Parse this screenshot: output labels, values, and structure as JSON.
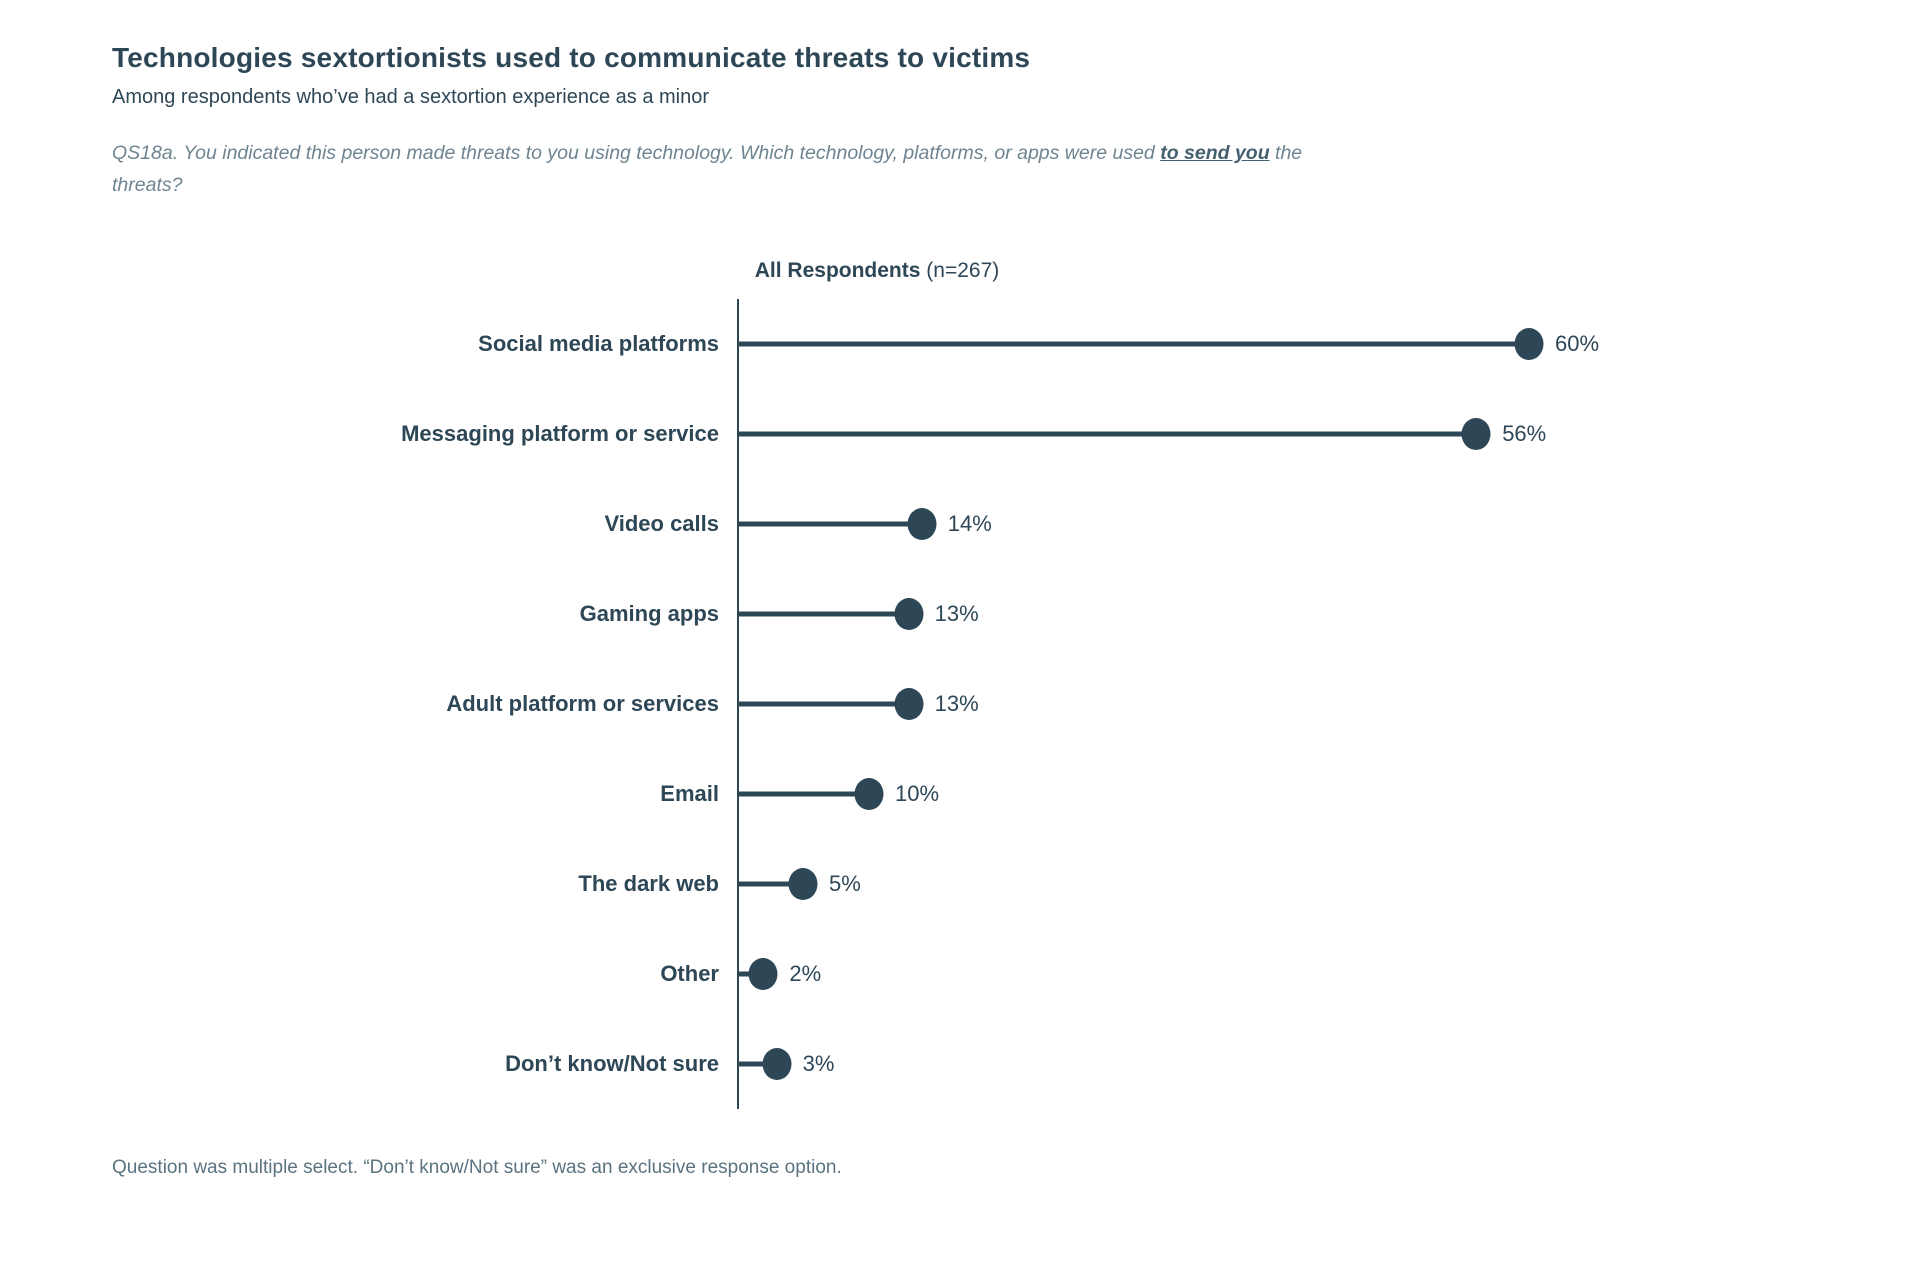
{
  "page": {
    "title": "Technologies sextortionists used to communicate threats to victims",
    "subtitle": "Among respondents who’ve had a sextortion experience as a minor",
    "question_prefix": "QS18a. You indicated this person made threats to you using technology. Which technology, platforms, or apps were used ",
    "question_emphasis": "to send you",
    "question_suffix": " the threats?",
    "footnote": "Question was multiple select. “Don’t know/Not sure” was an exclusive response option."
  },
  "chart_data": {
    "type": "bar",
    "style": "lollipop",
    "orientation": "horizontal",
    "column_header_bold": "All Respondents",
    "column_header_regular": " (n=267)",
    "categories": [
      "Social media platforms",
      "Messaging platform or service",
      "Video calls",
      "Gaming apps",
      "Adult platform or services",
      "Email",
      "The dark web",
      "Other",
      "Don’t know/Not sure"
    ],
    "values": [
      60,
      56,
      14,
      13,
      13,
      10,
      5,
      2,
      3
    ],
    "value_suffix": "%",
    "xlim": [
      0,
      65
    ],
    "grid": false,
    "legend": "none",
    "colors": {
      "accent": "#2e4757",
      "question_text": "#6e8491",
      "footnote_text": "#5b7380",
      "background": "#ffffff"
    }
  }
}
